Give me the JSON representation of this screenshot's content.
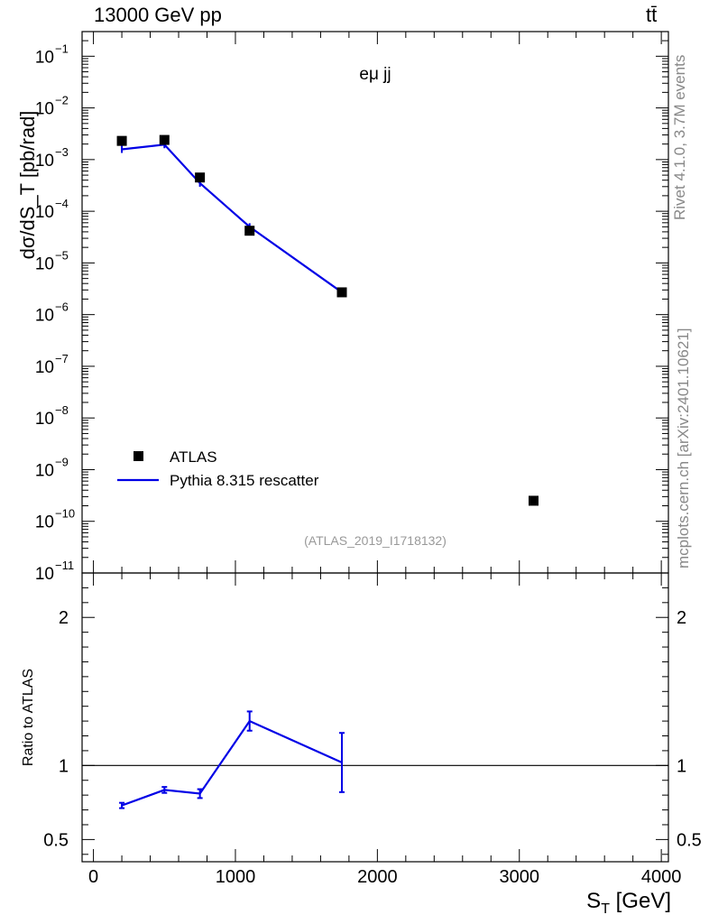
{
  "header": {
    "energy_label": "13000 GeV pp",
    "process_label": "tt̄",
    "rivet_label": "Rivet 4.1.0,  3.7M events",
    "mcplots_label": "mcplots.cern.ch [arXiv:2401.10621]"
  },
  "colors": {
    "data": "#000000",
    "mc": "#0000e6",
    "watermark": "#999999"
  },
  "chart_data": [
    {
      "type": "line",
      "panel": "main",
      "title": "eμ jj",
      "watermark": "(ATLAS_2019_I1718132)",
      "xlabel": "S_T [GeV]",
      "ylabel": "dσ/dS_T [pb/rad]",
      "yscale": "log",
      "xlim": [
        -80,
        4050
      ],
      "ylim": [
        1e-11,
        0.3
      ],
      "y_tick_exponents": [
        -11,
        -10,
        -9,
        -8,
        -7,
        -6,
        -5,
        -4,
        -3,
        -2,
        -1
      ],
      "y_tick_labels": [
        "10",
        "10",
        "10",
        "10",
        "10",
        "10",
        "10",
        "10",
        "10",
        "10",
        "10"
      ],
      "y_tick_superscripts": [
        "−11",
        "−10",
        "−9",
        "−8",
        "−7",
        "−6",
        "−5",
        "−4",
        "−3",
        "−2",
        "−1"
      ],
      "series": [
        {
          "name": "ATLAS",
          "style": "markers",
          "x": [
            200,
            500,
            750,
            1100,
            1750,
            3100
          ],
          "y": [
            0.0023,
            0.0024,
            0.00045,
            4.2e-05,
            2.7e-06,
            2.5e-10
          ]
        },
        {
          "name": "Pythia 8.315 rescatter",
          "style": "line",
          "x": [
            200,
            500,
            750,
            1100,
            1750
          ],
          "y": [
            0.00158,
            0.00195,
            0.00035,
            5e-05,
            2.7e-06
          ]
        }
      ],
      "legend": [
        "ATLAS",
        "Pythia 8.315 rescatter"
      ],
      "legend_position": "bottom-left"
    },
    {
      "type": "line",
      "panel": "ratio",
      "ylabel": "Ratio to ATLAS",
      "xlabel_main": "S",
      "xlabel_sub": "T",
      "xlabel_unit": "[GeV]",
      "ylim": [
        0.35,
        2.3
      ],
      "x_ticks": [
        0,
        1000,
        2000,
        3000,
        4000
      ],
      "x_tick_labels": [
        "0",
        "1000",
        "2000",
        "3000",
        "4000"
      ],
      "y_ticks": [
        0.5,
        1,
        2
      ],
      "y_tick_labels": [
        "0.5",
        "1",
        "2"
      ],
      "reference_line": 1,
      "series": [
        {
          "name": "Pythia 8.315 rescatter",
          "x": [
            200,
            500,
            750,
            1100,
            1750
          ],
          "y": [
            0.73,
            0.835,
            0.81,
            1.3,
            1.02
          ],
          "err": [
            0.018,
            0.02,
            0.03,
            0.065,
            0.2
          ]
        }
      ]
    }
  ]
}
